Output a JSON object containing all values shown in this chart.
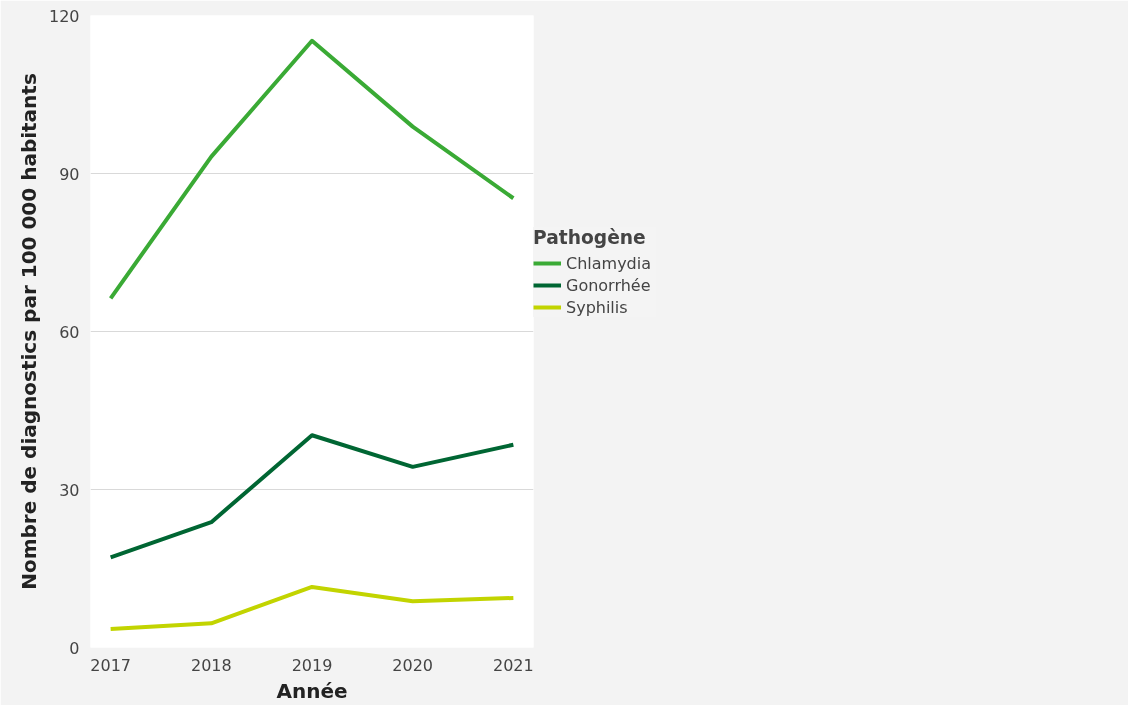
{
  "chart_data": {
    "type": "line",
    "xlabel": "Année",
    "ylabel": "Nombre de diagnostics par 100 000 habitants",
    "legend_title": "Pathogène",
    "legend": "right",
    "grid": "y",
    "line_style": "solid",
    "marker": "none",
    "x": [
      2017,
      2018,
      2019,
      2020,
      2021
    ],
    "series": [
      {
        "name": "Chlamydia",
        "color": "#3aaa35",
        "values": [
          66.3,
          93.2,
          115.2,
          98.9,
          85.3
        ]
      },
      {
        "name": "Gonorrhée",
        "color": "#006633",
        "values": [
          17.1,
          23.8,
          40.3,
          34.3,
          38.5
        ]
      },
      {
        "name": "Syphilis",
        "color": "#c2d400",
        "values": [
          3.5,
          4.6,
          11.5,
          8.8,
          9.4
        ]
      }
    ],
    "xlim": [
      2016.8,
      2021.2
    ],
    "ylim": [
      0,
      120
    ],
    "xticks": [
      2017,
      2018,
      2019,
      2020,
      2021
    ],
    "yticks": [
      0,
      30,
      60,
      90,
      120
    ]
  }
}
